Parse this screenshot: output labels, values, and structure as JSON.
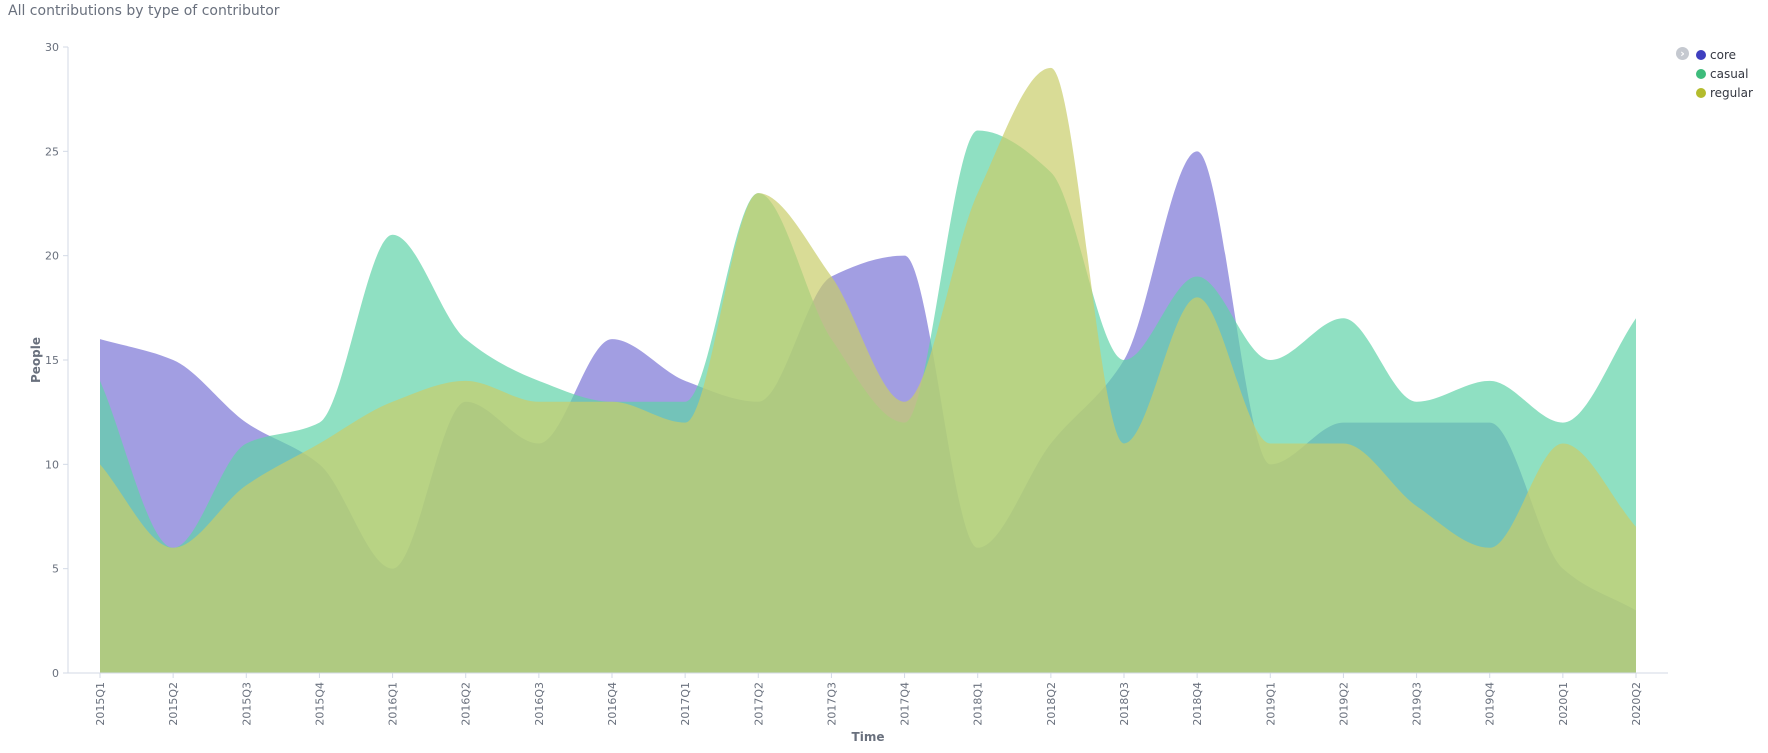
{
  "panel": {
    "title": "All contributions by type of contributor"
  },
  "legend": {
    "toggle_icon": "chevron-right-icon",
    "items": [
      {
        "label": "core",
        "color": "#3f3fbf"
      },
      {
        "label": "casual",
        "color": "#3ebc7c"
      },
      {
        "label": "regular",
        "color": "#b4bc2d"
      }
    ]
  },
  "chart_data": {
    "type": "area",
    "title": "All contributions by type of contributor",
    "xlabel": "Time",
    "ylabel": "People",
    "categories": [
      "2015Q1",
      "2015Q2",
      "2015Q3",
      "2015Q4",
      "2016Q1",
      "2016Q2",
      "2016Q3",
      "2016Q4",
      "2017Q1",
      "2017Q2",
      "2017Q3",
      "2017Q4",
      "2018Q1",
      "2018Q2",
      "2018Q3",
      "2018Q4",
      "2019Q1",
      "2019Q2",
      "2019Q3",
      "2019Q4",
      "2020Q1",
      "2020Q2"
    ],
    "ylim": [
      0,
      30
    ],
    "yticks": [
      0,
      5,
      10,
      15,
      20,
      25,
      30
    ],
    "grid": false,
    "legend_position": "top-right",
    "series": [
      {
        "name": "core",
        "color": "#7b75d6",
        "values": [
          16,
          15,
          12,
          10,
          5,
          13,
          11,
          16,
          14,
          13,
          19,
          20,
          6,
          11,
          15,
          25,
          10,
          12,
          12,
          12,
          5,
          3
        ]
      },
      {
        "name": "casual",
        "color": "#5fd3a8",
        "values": [
          14,
          6,
          11,
          12,
          21,
          16,
          14,
          13,
          13,
          23,
          16,
          12,
          26,
          24,
          15,
          19,
          15,
          17,
          13,
          14,
          12,
          17
        ]
      },
      {
        "name": "regular",
        "color": "#c9cd6a",
        "values": [
          10,
          6,
          9,
          11,
          13,
          14,
          13,
          13,
          12,
          23,
          19,
          13,
          23,
          29,
          11,
          18,
          11,
          11,
          8,
          6,
          11,
          7
        ]
      }
    ]
  }
}
